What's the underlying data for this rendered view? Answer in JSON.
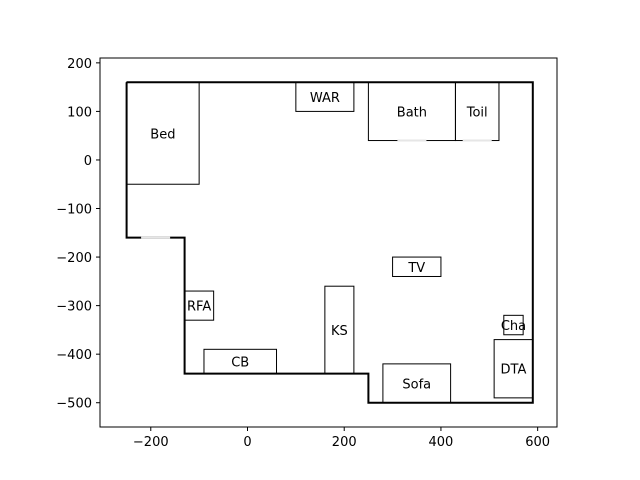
{
  "chart_data": {
    "type": "floor-plan",
    "title": "",
    "xlabel": "",
    "ylabel": "",
    "xlim": [
      -305,
      640
    ],
    "ylim": [
      -550,
      210
    ],
    "grid": false,
    "x_ticks": [
      {
        "value": -200,
        "label": "−200"
      },
      {
        "value": 0,
        "label": "0"
      },
      {
        "value": 200,
        "label": "200"
      },
      {
        "value": 400,
        "label": "400"
      },
      {
        "value": 600,
        "label": "600"
      }
    ],
    "y_ticks": [
      {
        "value": 200,
        "label": "200"
      },
      {
        "value": 100,
        "label": "100"
      },
      {
        "value": 0,
        "label": "0"
      },
      {
        "value": -100,
        "label": "−100"
      },
      {
        "value": -200,
        "label": "−200"
      },
      {
        "value": -300,
        "label": "−300"
      },
      {
        "value": -400,
        "label": "−400"
      },
      {
        "value": -500,
        "label": "−500"
      }
    ],
    "outline": [
      [
        -250,
        160
      ],
      [
        590,
        160
      ],
      [
        590,
        -500
      ],
      [
        250,
        -500
      ],
      [
        250,
        -440
      ],
      [
        -130,
        -440
      ],
      [
        -130,
        -160
      ],
      [
        -250,
        -160
      ],
      [
        -250,
        160
      ]
    ],
    "rooms": [
      {
        "id": "bed",
        "label": "Bed",
        "x0": -250,
        "y0": -50,
        "x1": -100,
        "y1": 160
      },
      {
        "id": "war",
        "label": "WAR",
        "x0": 100,
        "y0": 100,
        "x1": 220,
        "y1": 160
      },
      {
        "id": "bath",
        "label": "Bath",
        "x0": 250,
        "y0": 40,
        "x1": 430,
        "y1": 160
      },
      {
        "id": "toil",
        "label": "Toil",
        "x0": 430,
        "y0": 40,
        "x1": 520,
        "y1": 160
      },
      {
        "id": "tv",
        "label": "TV",
        "x0": 300,
        "y0": -240,
        "x1": 400,
        "y1": -200
      },
      {
        "id": "rfa",
        "label": "RFA",
        "x0": -130,
        "y0": -330,
        "x1": -70,
        "y1": -270
      },
      {
        "id": "ks",
        "label": "KS",
        "x0": 160,
        "y0": -440,
        "x1": 220,
        "y1": -260
      },
      {
        "id": "cb",
        "label": "CB",
        "x0": -90,
        "y0": -440,
        "x1": 60,
        "y1": -390
      },
      {
        "id": "sofa",
        "label": "Sofa",
        "x0": 280,
        "y0": -500,
        "x1": 420,
        "y1": -420
      },
      {
        "id": "cha",
        "label": "Cha",
        "x0": 530,
        "y0": -360,
        "x1": 570,
        "y1": -320
      },
      {
        "id": "dta",
        "label": "DTA",
        "x0": 510,
        "y0": -490,
        "x1": 590,
        "y1": -370
      }
    ],
    "openings": [
      {
        "id": "bed-door",
        "x0": -220,
        "y0": -160,
        "x1": -160,
        "y1": -160
      },
      {
        "id": "bath-door",
        "x0": 310,
        "y0": 40,
        "x1": 370,
        "y1": 40
      },
      {
        "id": "toil-door",
        "x0": 445,
        "y0": 40,
        "x1": 505,
        "y1": 40
      }
    ]
  }
}
